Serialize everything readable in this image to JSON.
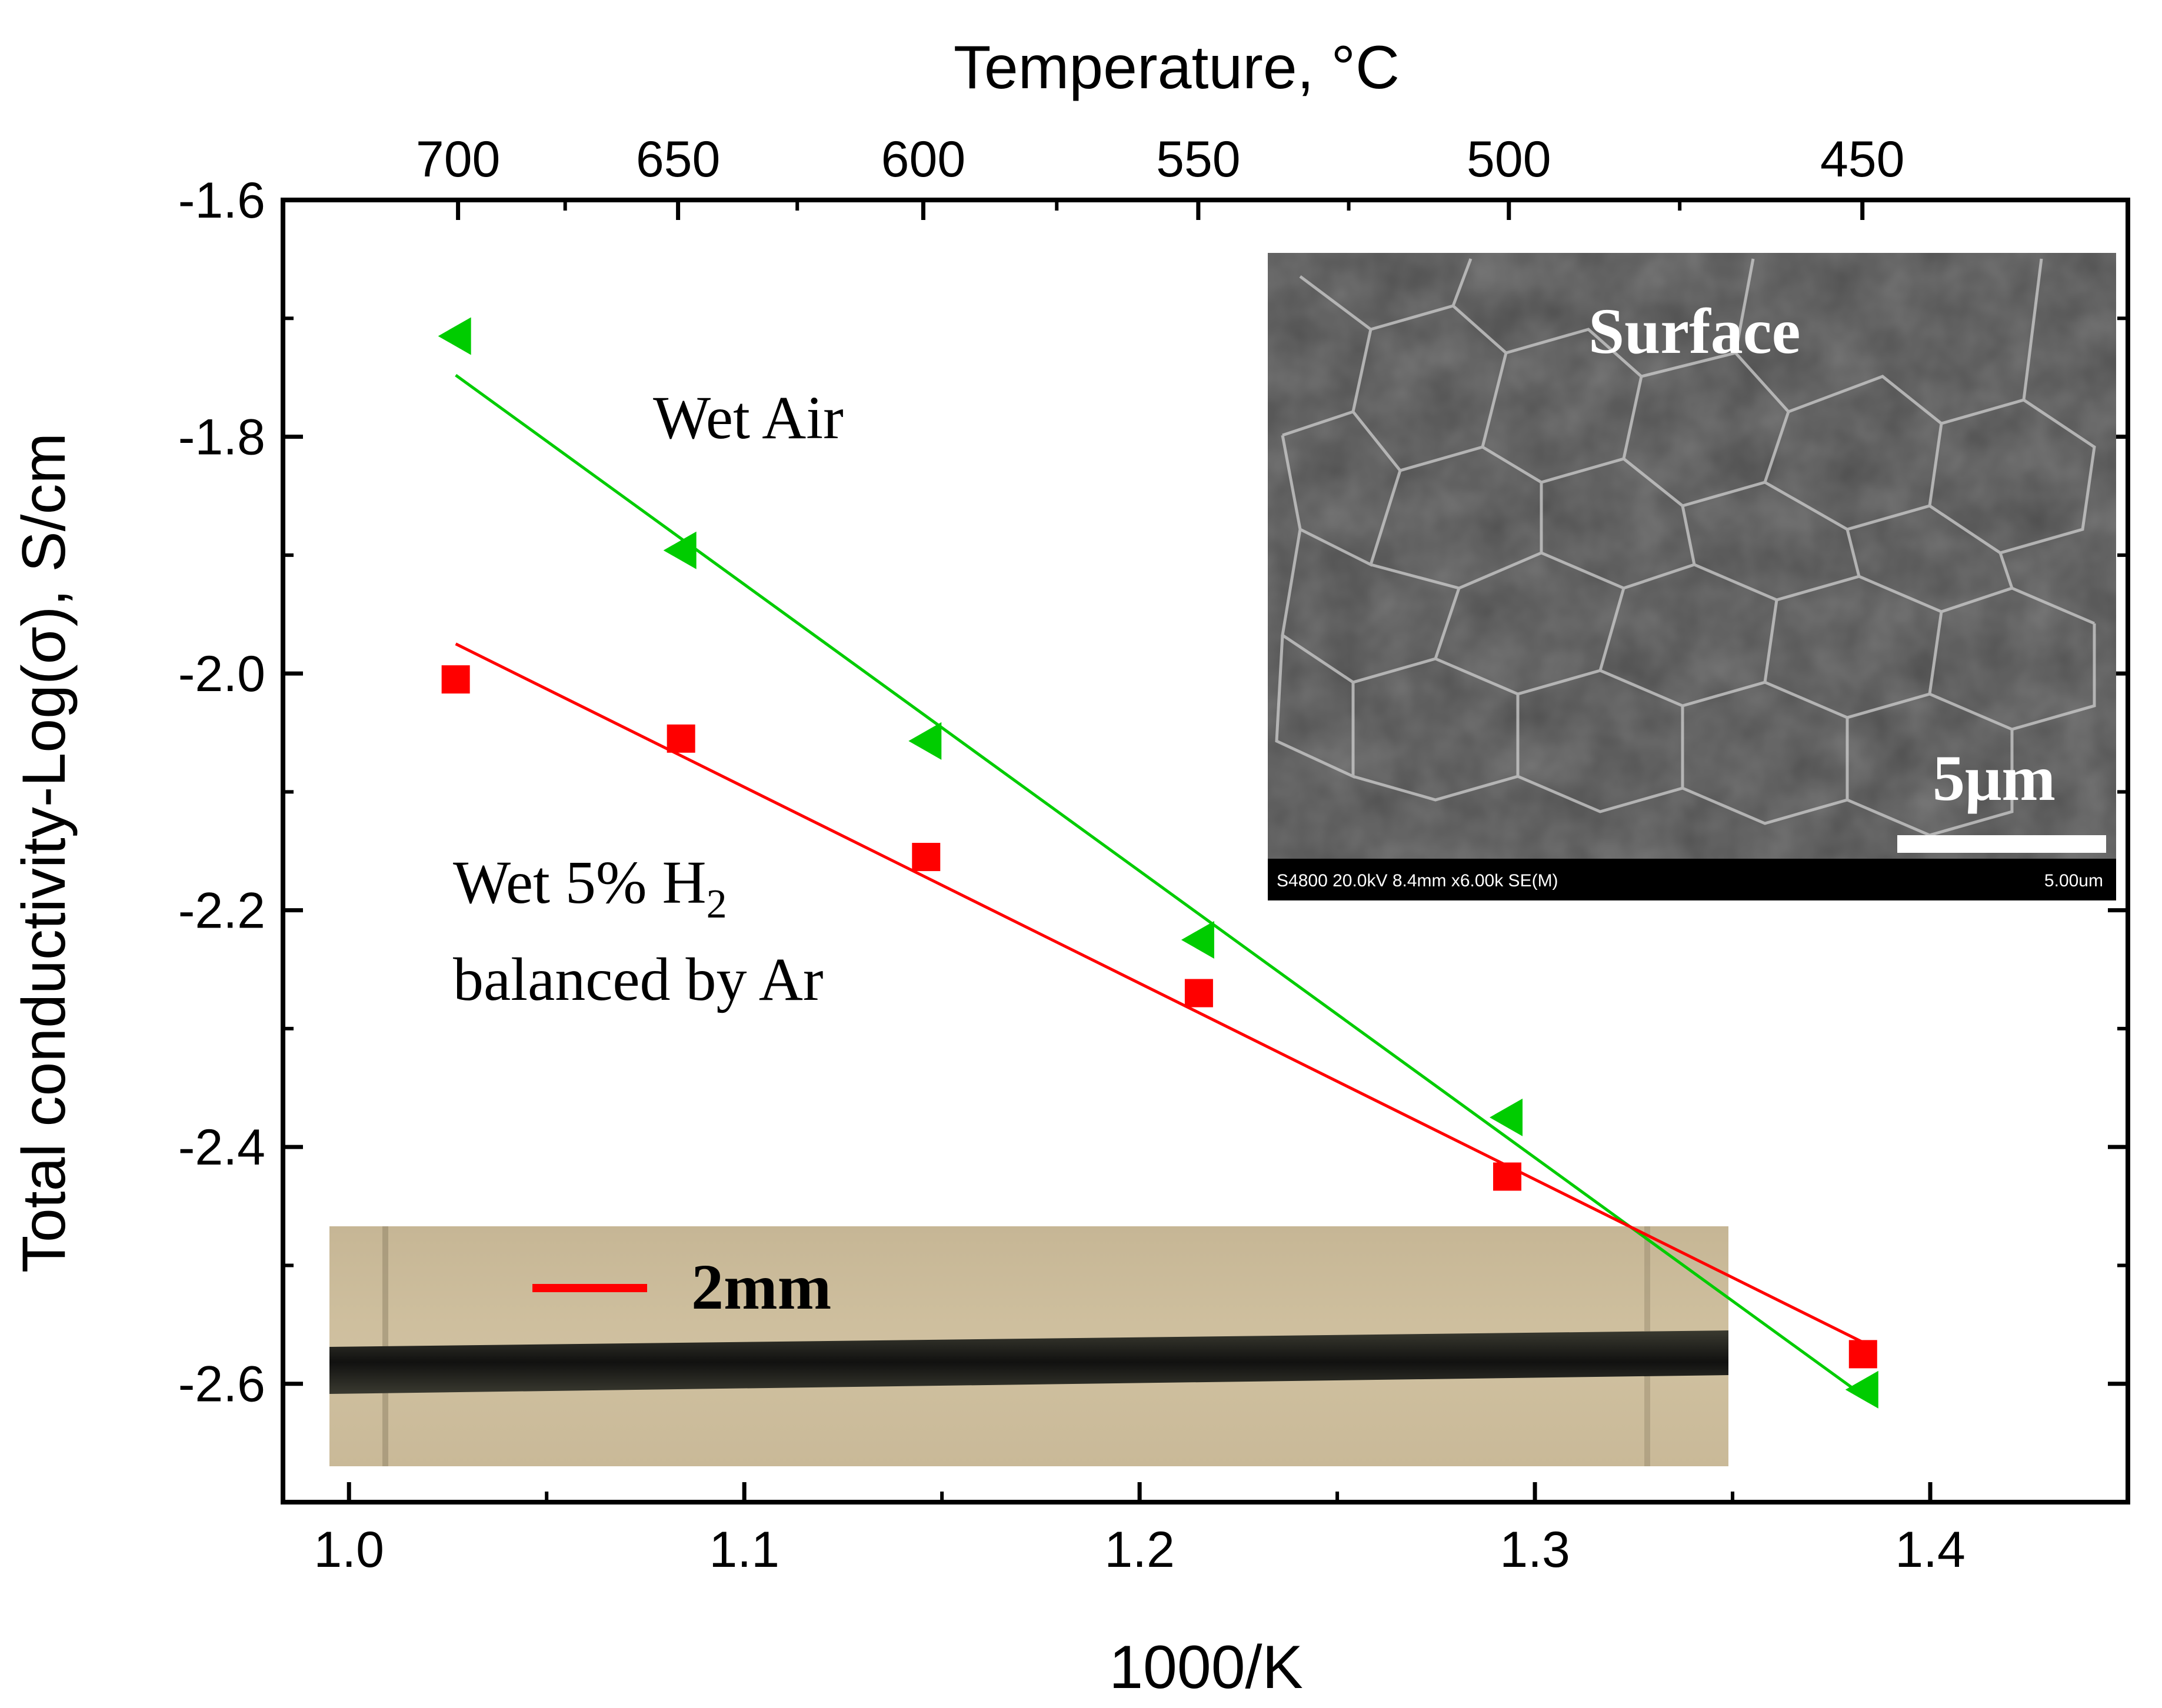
{
  "chart_data": {
    "type": "scatter",
    "xlabel": "1000/K",
    "ylabel": "Total conductivity-Log(σ), S/cm",
    "top_axis_label": "Temperature, °C",
    "xlim": [
      0.9833,
      1.45
    ],
    "ylim": [
      -2.7,
      -1.6
    ],
    "x_ticks": [
      "1.0",
      "1.1",
      "1.2",
      "1.3",
      "1.4"
    ],
    "y_ticks": [
      "-1.6",
      "-1.8",
      "-2.0",
      "-2.2",
      "-2.4",
      "-2.6"
    ],
    "top_ticks": [
      {
        "label": "700",
        "value": 700
      },
      {
        "label": "650",
        "value": 650
      },
      {
        "label": "600",
        "value": 600
      },
      {
        "label": "550",
        "value": 550
      },
      {
        "label": "500",
        "value": 500
      },
      {
        "label": "450",
        "value": 450
      }
    ],
    "series": [
      {
        "name": "Wet Air",
        "marker": "triangle-left",
        "color": "#00cc00",
        "points": [
          [
            1.027,
            -1.715
          ],
          [
            1.084,
            -1.896
          ],
          [
            1.146,
            -2.057
          ],
          [
            1.215,
            -2.225
          ],
          [
            1.293,
            -2.375
          ],
          [
            1.383,
            -2.605
          ]
        ],
        "fit": [
          [
            1.027,
            -1.748
          ],
          [
            1.383,
            -2.61
          ]
        ]
      },
      {
        "name": "Wet 5% H2 balanced by Ar",
        "marker": "square",
        "color": "#ff0000",
        "points": [
          [
            1.027,
            -2.005
          ],
          [
            1.084,
            -2.055
          ],
          [
            1.146,
            -2.155
          ],
          [
            1.215,
            -2.27
          ],
          [
            1.293,
            -2.425
          ],
          [
            1.383,
            -2.575
          ]
        ],
        "fit": [
          [
            1.027,
            -1.975
          ],
          [
            1.383,
            -2.565
          ]
        ]
      }
    ],
    "annotations": {
      "wet_air": "Wet Air",
      "h2_line1_prefix": "Wet 5% H",
      "h2_line1_sub": "2",
      "h2_line2": "balanced by Ar"
    }
  },
  "sem_inset": {
    "label": "Surface",
    "scale_text": "5μm",
    "footer_left": "S4800 20.0kV 8.4mm x6.00k SE(M)",
    "footer_right": "5.00um"
  },
  "photo_inset": {
    "scale_text": "2mm"
  },
  "colors": {
    "wet_air": "#00cc00",
    "h2": "#ff0000"
  }
}
